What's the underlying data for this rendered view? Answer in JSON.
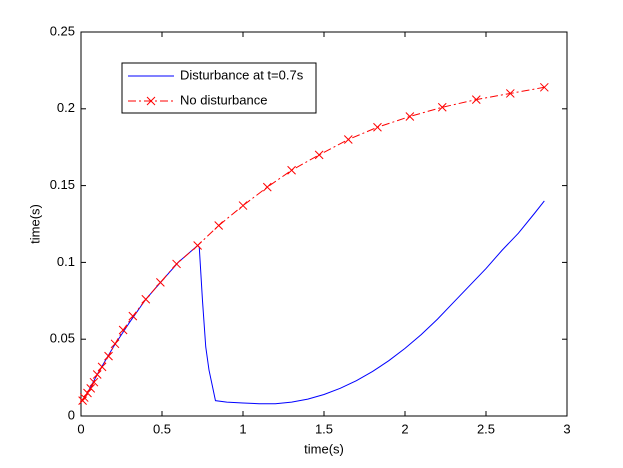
{
  "chart_data": {
    "type": "line",
    "xlabel": "time(s)",
    "ylabel": "time(s)",
    "xlim": [
      0,
      3
    ],
    "xticks": [
      0,
      0.5,
      1,
      1.5,
      2,
      2.5,
      3
    ],
    "ylim": [
      0,
      0.25
    ],
    "yticks": [
      0,
      0.05,
      0.1,
      0.15,
      0.2,
      0.25
    ],
    "legend": "upper left",
    "series": [
      {
        "name": "Disturbance at t=0.7s",
        "color": "#0000ff",
        "linestyle": "solid",
        "marker": "none",
        "x": [
          0.01,
          0.05,
          0.1,
          0.2,
          0.3,
          0.4,
          0.5,
          0.6,
          0.72,
          0.73,
          0.75,
          0.77,
          0.79,
          0.81,
          0.83,
          0.9,
          1.0,
          1.1,
          1.2,
          1.3,
          1.4,
          1.5,
          1.6,
          1.7,
          1.8,
          1.9,
          2.0,
          2.1,
          2.2,
          2.3,
          2.4,
          2.5,
          2.6,
          2.7,
          2.8,
          2.86
        ],
        "values": [
          0.01,
          0.017,
          0.027,
          0.045,
          0.061,
          0.076,
          0.088,
          0.1,
          0.111,
          0.11,
          0.075,
          0.045,
          0.03,
          0.02,
          0.01,
          0.009,
          0.0085,
          0.008,
          0.008,
          0.009,
          0.011,
          0.014,
          0.018,
          0.023,
          0.029,
          0.036,
          0.044,
          0.053,
          0.063,
          0.074,
          0.085,
          0.096,
          0.108,
          0.119,
          0.132,
          0.14
        ]
      },
      {
        "name": "No disturbance",
        "color": "#ff0000",
        "linestyle": "dashdot",
        "marker": "x",
        "x": [
          0.01,
          0.02,
          0.04,
          0.06,
          0.08,
          0.1,
          0.13,
          0.17,
          0.21,
          0.26,
          0.32,
          0.4,
          0.49,
          0.59,
          0.72,
          0.85,
          1.0,
          1.15,
          1.3,
          1.47,
          1.65,
          1.83,
          2.03,
          2.23,
          2.44,
          2.65,
          2.86
        ],
        "values": [
          0.01,
          0.012,
          0.015,
          0.018,
          0.022,
          0.027,
          0.032,
          0.039,
          0.047,
          0.056,
          0.065,
          0.076,
          0.087,
          0.099,
          0.111,
          0.124,
          0.137,
          0.149,
          0.16,
          0.17,
          0.18,
          0.188,
          0.195,
          0.201,
          0.206,
          0.21,
          0.214
        ]
      }
    ]
  }
}
